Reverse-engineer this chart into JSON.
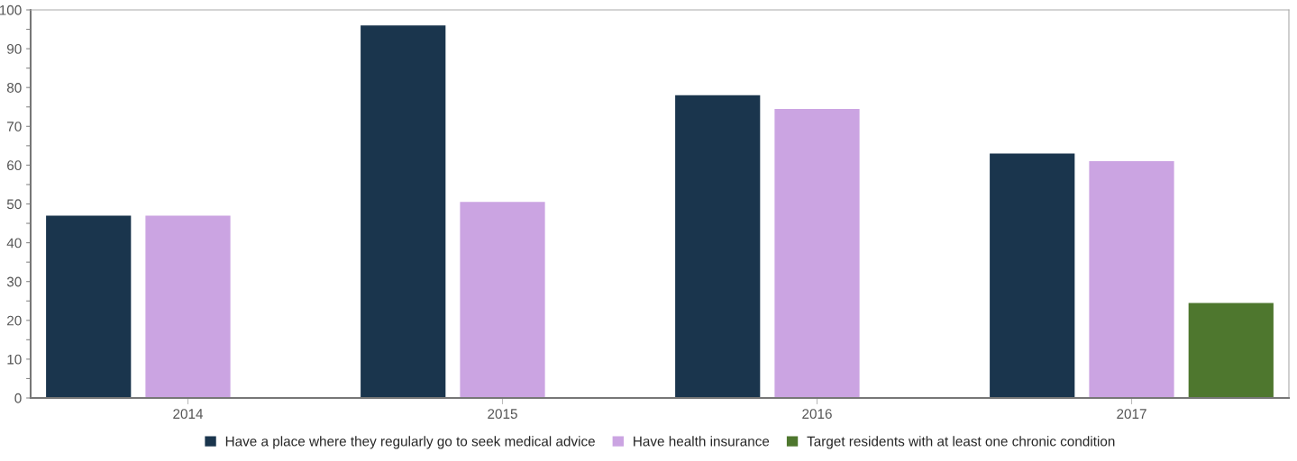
{
  "chart_data": {
    "type": "bar",
    "categories": [
      "2014",
      "2015",
      "2016",
      "2017"
    ],
    "series": [
      {
        "name": "Have a place where they regularly go to seek medical advice",
        "color": "#1a354d",
        "values": [
          47,
          96,
          78,
          63
        ]
      },
      {
        "name": "Have health insurance",
        "color": "#cba4e2",
        "values": [
          47,
          50.5,
          74.5,
          61
        ]
      },
      {
        "name": "Target residents with at least one chronic condition",
        "color": "#4e772e",
        "values": [
          null,
          null,
          null,
          24.5
        ]
      }
    ],
    "ylim": [
      0,
      100
    ],
    "yticks": [
      0,
      {
        "value": 5,
        "label": null
      },
      10,
      {
        "value": 15,
        "label": null
      },
      20,
      {
        "value": 25,
        "label": null
      },
      30,
      {
        "value": 35,
        "label": null
      },
      40,
      {
        "value": 45,
        "label": null
      },
      50,
      {
        "value": 55,
        "label": null
      },
      60,
      {
        "value": 65,
        "label": null
      },
      70,
      {
        "value": 75,
        "label": null
      },
      80,
      {
        "value": 85,
        "label": null
      },
      90,
      {
        "value": 95,
        "label": null
      },
      100
    ],
    "grid": false,
    "legend": "bottom"
  }
}
